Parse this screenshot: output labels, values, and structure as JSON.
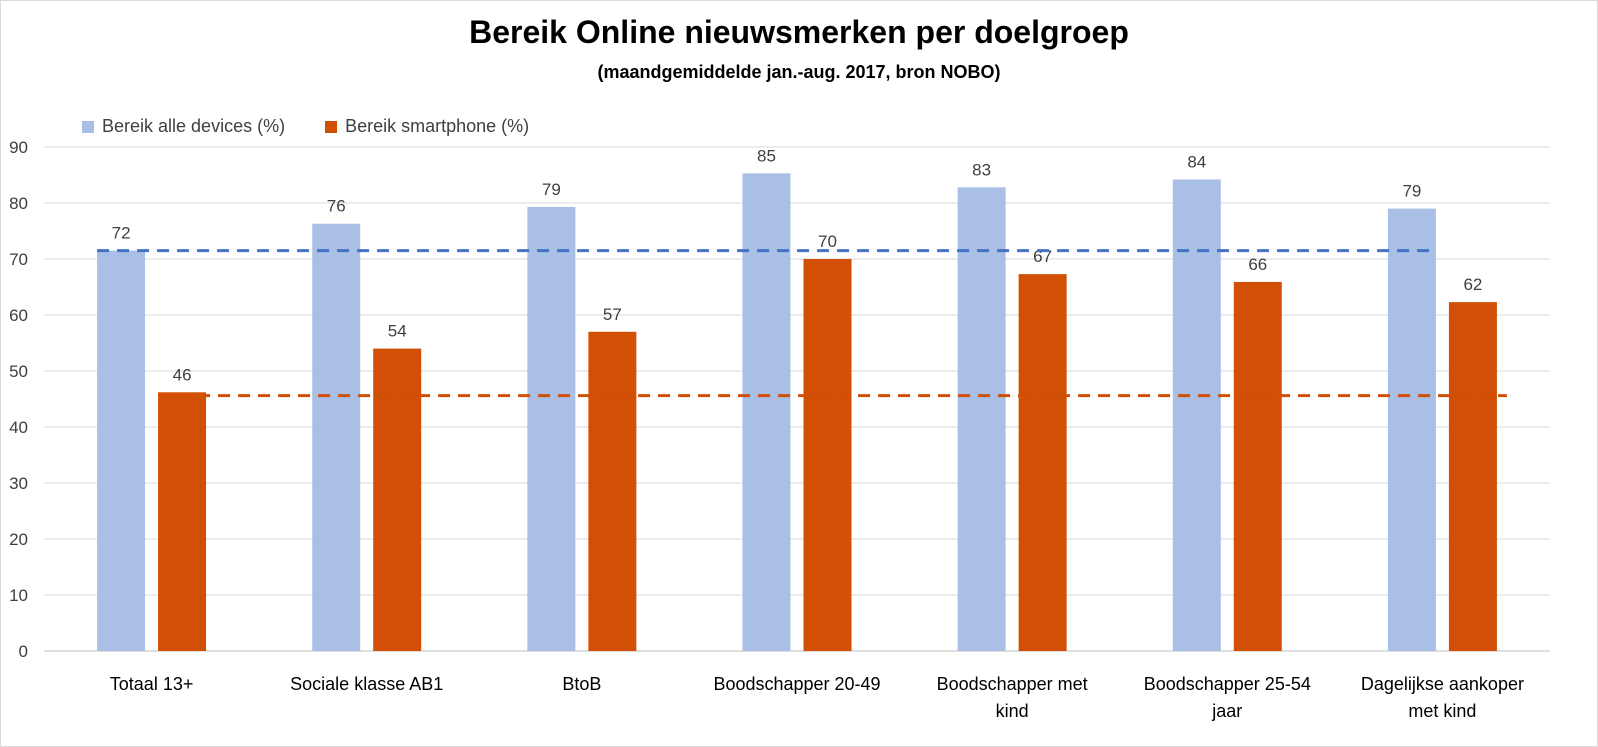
{
  "chart_data": {
    "type": "bar",
    "title": "Bereik Online nieuwsmerken per doelgroep",
    "subtitle": "(maandgemiddelde jan.-aug. 2017, bron NOBO)",
    "categories": [
      [
        "Totaal 13+"
      ],
      [
        "Sociale klasse AB1"
      ],
      [
        "BtoB"
      ],
      [
        "Boodschapper 20-49"
      ],
      [
        "Boodschapper met",
        "kind"
      ],
      [
        "Boodschapper 25-54",
        "jaar"
      ],
      [
        "Dagelijkse aankoper",
        "met kind"
      ]
    ],
    "series": [
      {
        "name": "Bereik alle devices (%)",
        "color": "#a9bfe5",
        "values": [
          71.5,
          76.3,
          79.3,
          85.3,
          82.8,
          84.2,
          79.0
        ],
        "labels": [
          "72",
          "76",
          "79",
          "85",
          "83",
          "84",
          "79"
        ],
        "average_line": {
          "value": 71.5,
          "color": "#4472c4"
        }
      },
      {
        "name": "Bereik smartphone (%)",
        "color": "#d24f06",
        "values": [
          46.2,
          54.0,
          57.0,
          70.0,
          67.3,
          65.9,
          62.3
        ],
        "labels": [
          "46",
          "54",
          "57",
          "70",
          "67",
          "66",
          "62"
        ],
        "average_line": {
          "value": 45.6,
          "color": "#d24f06"
        }
      }
    ],
    "yticks": [
      "0",
      "10",
      "20",
      "30",
      "40",
      "50",
      "60",
      "70",
      "80",
      "90"
    ],
    "ylim": [
      0,
      90
    ],
    "grid": true,
    "legend_position": "top-left"
  }
}
